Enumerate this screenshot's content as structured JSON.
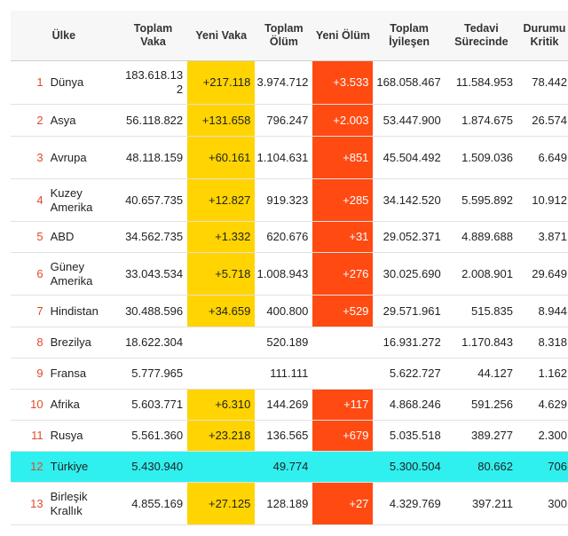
{
  "table": {
    "headers": {
      "country": "Ülke",
      "total_cases": "Toplam Vaka",
      "new_cases": "Yeni Vaka",
      "total_deaths": "Toplam Ölüm",
      "new_deaths": "Yeni Ölüm",
      "total_recovered": "Toplam İyileşen",
      "active": "Tedavi Sürecinde",
      "critical": "Durumu Kritik"
    },
    "rows": [
      {
        "idx": "1",
        "name": "Dünya",
        "total_cases": "183.618.132",
        "new_cases": "+217.118",
        "total_deaths": "3.974.712",
        "new_deaths": "+3.533",
        "recovered": "168.058.467",
        "active": "11.584.953",
        "critical": "78.442"
      },
      {
        "idx": "2",
        "name": "Asya",
        "total_cases": "56.118.822",
        "new_cases": "+131.658",
        "total_deaths": "796.247",
        "new_deaths": "+2.003",
        "recovered": "53.447.900",
        "active": "1.874.675",
        "critical": "26.574"
      },
      {
        "idx": "3",
        "name": "Avrupa",
        "total_cases": "48.118.159",
        "new_cases": "+60.161",
        "total_deaths": "1.104.631",
        "new_deaths": "+851",
        "recovered": "45.504.492",
        "active": "1.509.036",
        "critical": "6.649"
      },
      {
        "idx": "4",
        "name": "Kuzey Amerika",
        "total_cases": "40.657.735",
        "new_cases": "+12.827",
        "total_deaths": "919.323",
        "new_deaths": "+285",
        "recovered": "34.142.520",
        "active": "5.595.892",
        "critical": "10.912"
      },
      {
        "idx": "5",
        "name": "ABD",
        "total_cases": "34.562.735",
        "new_cases": "+1.332",
        "total_deaths": "620.676",
        "new_deaths": "+31",
        "recovered": "29.052.371",
        "active": "4.889.688",
        "critical": "3.871"
      },
      {
        "idx": "6",
        "name": "Güney Amerika",
        "total_cases": "33.043.534",
        "new_cases": "+5.718",
        "total_deaths": "1.008.943",
        "new_deaths": "+276",
        "recovered": "30.025.690",
        "active": "2.008.901",
        "critical": "29.649"
      },
      {
        "idx": "7",
        "name": "Hindistan",
        "total_cases": "30.488.596",
        "new_cases": "+34.659",
        "total_deaths": "400.800",
        "new_deaths": "+529",
        "recovered": "29.571.961",
        "active": "515.835",
        "critical": "8.944"
      },
      {
        "idx": "8",
        "name": "Brezilya",
        "total_cases": "18.622.304",
        "new_cases": "",
        "total_deaths": "520.189",
        "new_deaths": "",
        "recovered": "16.931.272",
        "active": "1.170.843",
        "critical": "8.318"
      },
      {
        "idx": "9",
        "name": "Fransa",
        "total_cases": "5.777.965",
        "new_cases": "",
        "total_deaths": "111.111",
        "new_deaths": "",
        "recovered": "5.622.727",
        "active": "44.127",
        "critical": "1.162"
      },
      {
        "idx": "10",
        "name": "Afrika",
        "total_cases": "5.603.771",
        "new_cases": "+6.310",
        "total_deaths": "144.269",
        "new_deaths": "+117",
        "recovered": "4.868.246",
        "active": "591.256",
        "critical": "4.629"
      },
      {
        "idx": "11",
        "name": "Rusya",
        "total_cases": "5.561.360",
        "new_cases": "+23.218",
        "total_deaths": "136.565",
        "new_deaths": "+679",
        "recovered": "5.035.518",
        "active": "389.277",
        "critical": "2.300"
      },
      {
        "idx": "12",
        "name": "Türkiye",
        "total_cases": "5.430.940",
        "new_cases": "",
        "total_deaths": "49.774",
        "new_deaths": "",
        "recovered": "5.300.504",
        "active": "80.662",
        "critical": "706"
      },
      {
        "idx": "13",
        "name": "Birleşik Krallık",
        "total_cases": "4.855.169",
        "new_cases": "+27.125",
        "total_deaths": "128.189",
        "new_deaths": "+27",
        "recovered": "4.329.769",
        "active": "397.211",
        "critical": "300"
      }
    ]
  },
  "colors": {
    "new_cases_bg": "#ffd400",
    "new_deaths_bg": "#ff4a12",
    "highlight_row_bg": "#2ff0ef",
    "index_text": "#e04b2a"
  }
}
